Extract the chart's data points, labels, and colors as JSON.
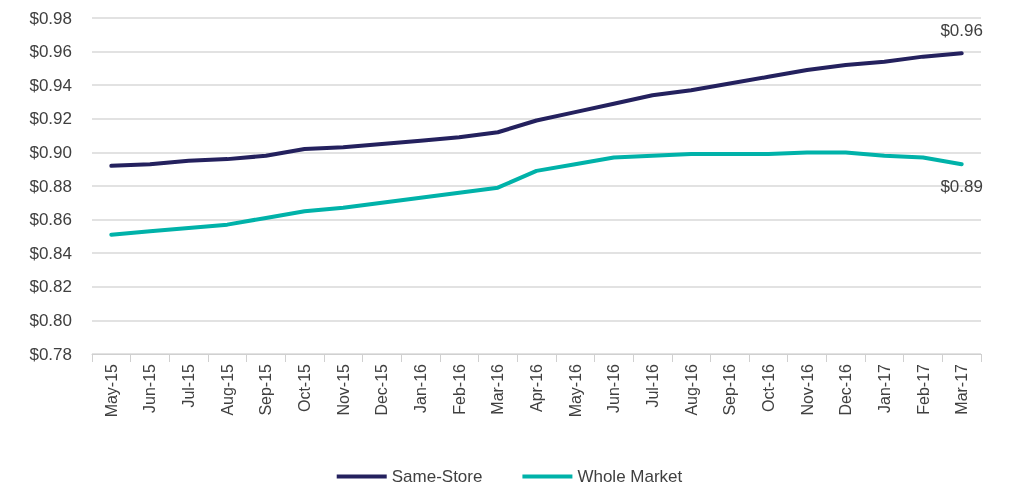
{
  "chart_data": {
    "type": "line",
    "categories": [
      "May-15",
      "Jun-15",
      "Jul-15",
      "Aug-15",
      "Sep-15",
      "Oct-15",
      "Nov-15",
      "Dec-15",
      "Jan-16",
      "Feb-16",
      "Mar-16",
      "Apr-16",
      "May-16",
      "Jun-16",
      "Jul-16",
      "Aug-16",
      "Sep-16",
      "Oct-16",
      "Nov-16",
      "Dec-16",
      "Jan-17",
      "Feb-17",
      "Mar-17"
    ],
    "series": [
      {
        "name": "Same-Store",
        "color": "#24215e",
        "values": [
          0.892,
          0.893,
          0.895,
          0.896,
          0.898,
          0.902,
          0.903,
          0.905,
          0.907,
          0.909,
          0.912,
          0.919,
          0.924,
          0.929,
          0.934,
          0.937,
          0.941,
          0.945,
          0.949,
          0.952,
          0.954,
          0.957,
          0.959
        ],
        "value_labels": [
          null,
          null,
          null,
          null,
          null,
          null,
          null,
          null,
          null,
          null,
          null,
          null,
          null,
          null,
          null,
          null,
          null,
          null,
          null,
          null,
          null,
          null,
          "$0.96"
        ]
      },
      {
        "name": "Whole Market",
        "color": "#00b2a9",
        "values": [
          0.851,
          0.853,
          0.855,
          0.857,
          0.861,
          0.865,
          0.867,
          0.87,
          0.873,
          0.876,
          0.879,
          0.889,
          0.893,
          0.897,
          0.898,
          0.899,
          0.899,
          0.899,
          0.9,
          0.9,
          0.898,
          0.897,
          0.893
        ],
        "value_labels": [
          null,
          null,
          null,
          null,
          null,
          null,
          null,
          null,
          null,
          null,
          null,
          null,
          null,
          null,
          null,
          null,
          null,
          null,
          null,
          null,
          null,
          null,
          "$0.89"
        ]
      }
    ],
    "ylim": [
      0.78,
      0.98
    ],
    "yticks": [
      {
        "value": 0.78,
        "label": "$0.78"
      },
      {
        "value": 0.8,
        "label": "$0.80"
      },
      {
        "value": 0.82,
        "label": "$0.82"
      },
      {
        "value": 0.84,
        "label": "$0.84"
      },
      {
        "value": 0.86,
        "label": "$0.86"
      },
      {
        "value": 0.88,
        "label": "$0.88"
      },
      {
        "value": 0.9,
        "label": "$0.90"
      },
      {
        "value": 0.92,
        "label": "$0.92"
      },
      {
        "value": 0.94,
        "label": "$0.94"
      },
      {
        "value": 0.96,
        "label": "$0.96"
      },
      {
        "value": 0.98,
        "label": "$0.98"
      }
    ],
    "grid": "y",
    "legend": "bottom",
    "marker": "none",
    "line_style": "solid"
  }
}
